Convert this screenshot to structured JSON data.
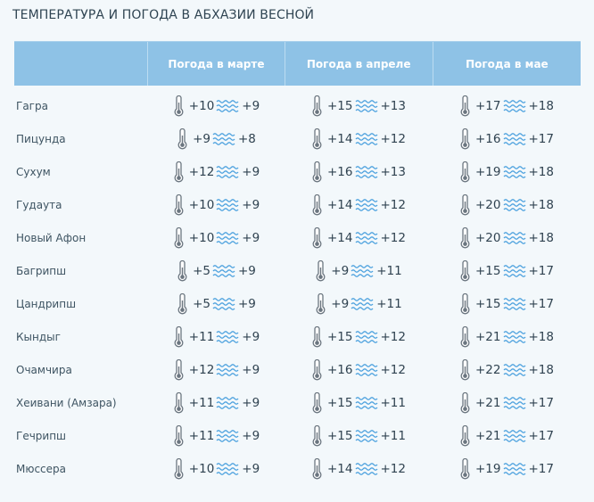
{
  "title": "ТЕМПЕРАТУРА И ПОГОДА В АБХАЗИИ ВЕСНОЙ",
  "columns": [
    "",
    "Погода в марте",
    "Погода в апреле",
    "Погода в мае"
  ],
  "colors": {
    "header_bg": "#8ec2e6",
    "page_bg": "#f3f8fb",
    "wave": "#4aa0de",
    "thermometer": "#6b7680"
  },
  "icons": {
    "air": "thermometer-icon",
    "sea": "waves-icon"
  },
  "rows": [
    {
      "city": "Гагра",
      "months": [
        {
          "air": "+10",
          "sea": "+9"
        },
        {
          "air": "+15",
          "sea": "+13"
        },
        {
          "air": "+17",
          "sea": "+18"
        }
      ]
    },
    {
      "city": "Пицунда",
      "months": [
        {
          "air": "+9",
          "sea": "+8"
        },
        {
          "air": "+14",
          "sea": "+12"
        },
        {
          "air": "+16",
          "sea": "+17"
        }
      ]
    },
    {
      "city": "Сухум",
      "months": [
        {
          "air": "+12",
          "sea": "+9"
        },
        {
          "air": "+16",
          "sea": "+13"
        },
        {
          "air": "+19",
          "sea": "+18"
        }
      ]
    },
    {
      "city": "Гудаута",
      "months": [
        {
          "air": "+10",
          "sea": "+9"
        },
        {
          "air": "+14",
          "sea": "+12"
        },
        {
          "air": "+20",
          "sea": "+18"
        }
      ]
    },
    {
      "city": "Новый Афон",
      "months": [
        {
          "air": "+10",
          "sea": "+9"
        },
        {
          "air": "+14",
          "sea": "+12"
        },
        {
          "air": "+20",
          "sea": "+18"
        }
      ]
    },
    {
      "city": "Багрипш",
      "months": [
        {
          "air": "+5",
          "sea": "+9"
        },
        {
          "air": "+9",
          "sea": "+11"
        },
        {
          "air": "+15",
          "sea": "+17"
        }
      ]
    },
    {
      "city": "Цандрипш",
      "months": [
        {
          "air": "+5",
          "sea": "+9"
        },
        {
          "air": "+9",
          "sea": "+11"
        },
        {
          "air": "+15",
          "sea": "+17"
        }
      ]
    },
    {
      "city": "Кындыг",
      "months": [
        {
          "air": "+11",
          "sea": "+9"
        },
        {
          "air": "+15",
          "sea": "+12"
        },
        {
          "air": "+21",
          "sea": "+18"
        }
      ]
    },
    {
      "city": "Очамчира",
      "months": [
        {
          "air": "+12",
          "sea": "+9"
        },
        {
          "air": "+16",
          "sea": "+12"
        },
        {
          "air": "+22",
          "sea": "+18"
        }
      ]
    },
    {
      "city": "Хеивани (Амзара)",
      "months": [
        {
          "air": "+11",
          "sea": "+9"
        },
        {
          "air": "+15",
          "sea": "+11"
        },
        {
          "air": "+21",
          "sea": "+17"
        }
      ]
    },
    {
      "city": "Гечрипш",
      "months": [
        {
          "air": "+11",
          "sea": "+9"
        },
        {
          "air": "+15",
          "sea": "+11"
        },
        {
          "air": "+21",
          "sea": "+17"
        }
      ]
    },
    {
      "city": "Мюссера",
      "months": [
        {
          "air": "+10",
          "sea": "+9"
        },
        {
          "air": "+14",
          "sea": "+12"
        },
        {
          "air": "+19",
          "sea": "+17"
        }
      ]
    }
  ]
}
